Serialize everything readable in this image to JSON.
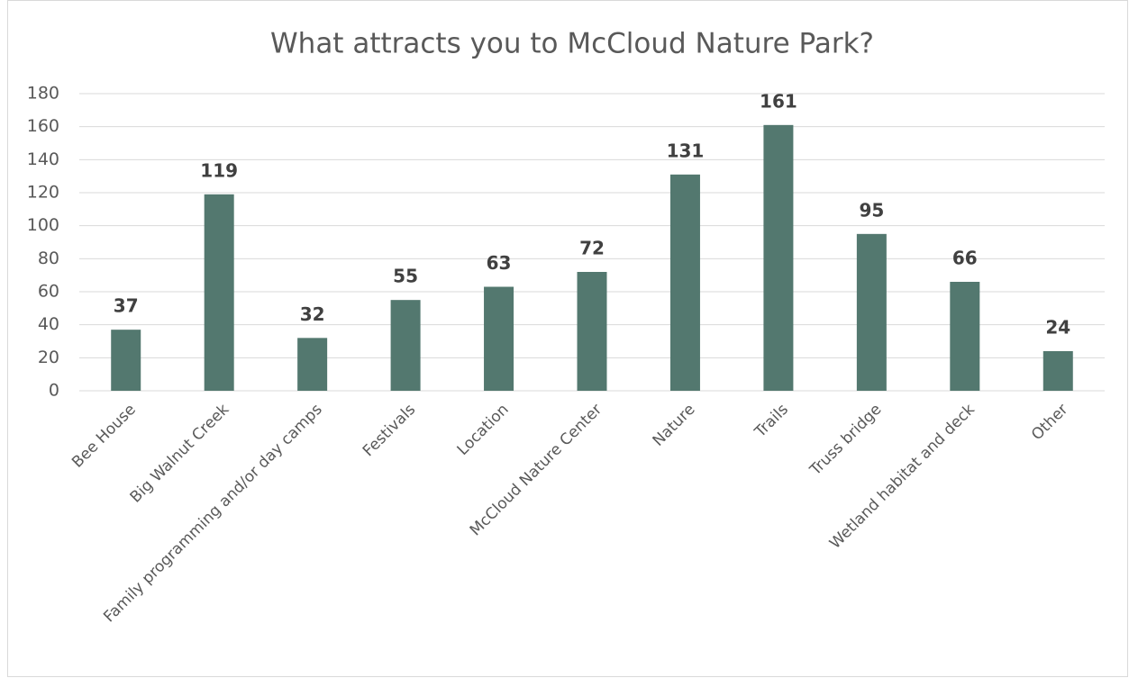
{
  "chart_data": {
    "type": "bar",
    "title": "What attracts you to McCloud Nature Park?",
    "categories": [
      "Bee House",
      "Big Walnut Creek",
      "Family programming and/or day camps",
      "Festivals",
      "Location",
      "McCloud Nature Center",
      "Nature",
      "Trails",
      "Truss bridge",
      "Wetland habitat and deck",
      "Other"
    ],
    "values": [
      37,
      119,
      32,
      55,
      63,
      72,
      131,
      161,
      95,
      66,
      24
    ],
    "color": "#53786f",
    "ylim": [
      0,
      180
    ],
    "yticks": [
      0,
      20,
      40,
      60,
      80,
      100,
      120,
      140,
      160,
      180
    ],
    "grid": true
  }
}
